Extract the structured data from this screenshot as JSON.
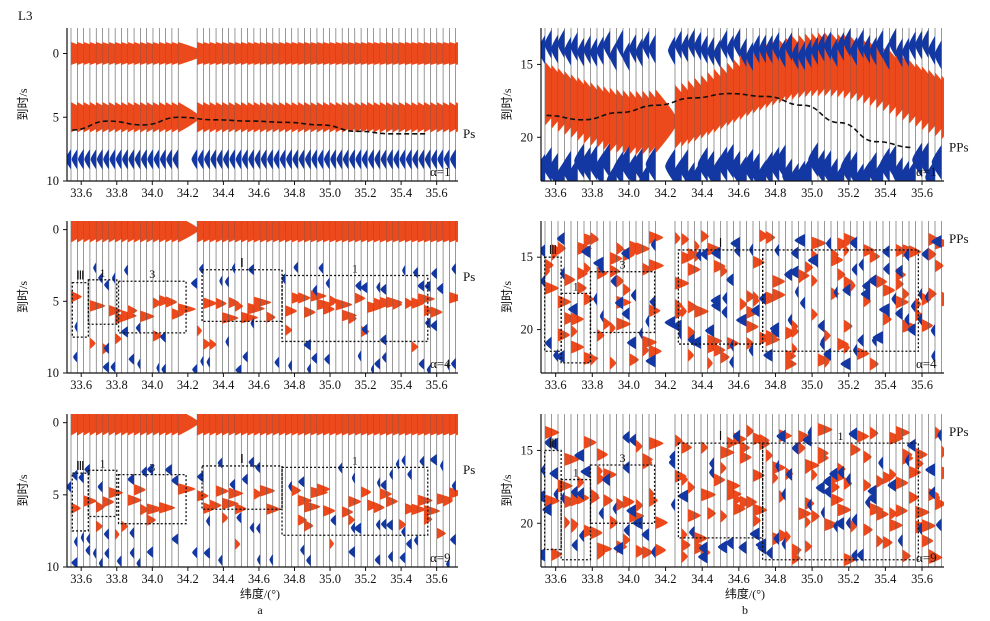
{
  "figure": {
    "line_label": "L3",
    "xlabel": "纬度/(°)",
    "ylabel": "到时/s",
    "subfig_labels": [
      "a",
      "b"
    ],
    "colors": {
      "positive": "#ec4a1c",
      "negative": "#1338a3",
      "trace": "#555555"
    }
  },
  "chart_data": [
    {
      "id": "a1",
      "type": "heatmap",
      "phase": "Ps",
      "alpha": "α=1",
      "xlim": [
        33.52,
        35.72
      ],
      "xticks": [
        "33.6",
        "33.8",
        "34.0",
        "34.2",
        "34.4",
        "34.6",
        "34.8",
        "35.0",
        "35.2",
        "35.4",
        "35.6"
      ],
      "ylim": [
        10,
        -2
      ],
      "yticks": [
        "0",
        "5",
        "10"
      ],
      "moveout": {
        "x": [
          33.55,
          33.75,
          33.95,
          34.15,
          34.35,
          34.55,
          34.75,
          34.95,
          35.15,
          35.35,
          35.55
        ],
        "y": [
          6.0,
          5.3,
          5.6,
          5.0,
          5.2,
          5.3,
          5.4,
          5.6,
          6.1,
          6.3,
          6.3
        ]
      },
      "boxes": []
    },
    {
      "id": "b1",
      "type": "heatmap",
      "phase": "PPs",
      "alpha": "α=1",
      "xlim": [
        33.52,
        35.72
      ],
      "xticks": [
        "33.6",
        "33.8",
        "34.0",
        "34.2",
        "34.4",
        "34.6",
        "34.8",
        "35.0",
        "35.2",
        "35.4",
        "35.6"
      ],
      "ylim": [
        23,
        12.5
      ],
      "yticks": [
        "15",
        "20"
      ],
      "moveout": {
        "x": [
          33.55,
          33.75,
          33.95,
          34.15,
          34.35,
          34.55,
          34.75,
          34.95,
          35.15,
          35.35,
          35.55
        ],
        "y": [
          18.5,
          18.8,
          18.3,
          17.8,
          17.3,
          17.0,
          17.2,
          17.8,
          19.0,
          20.3,
          20.7
        ]
      },
      "boxes": []
    },
    {
      "id": "a2",
      "type": "heatmap",
      "phase": "Ps",
      "alpha": "α=4",
      "xlim": [
        33.52,
        35.72
      ],
      "xticks": [
        "33.6",
        "33.8",
        "34.0",
        "34.2",
        "34.4",
        "34.6",
        "34.8",
        "35.0",
        "35.2",
        "35.4",
        "35.6"
      ],
      "ylim": [
        10,
        -0.6
      ],
      "yticks": [
        "0",
        "5",
        "10"
      ],
      "boxes": [
        {
          "label": "Ⅲ",
          "x0": 33.55,
          "x1": 33.64,
          "y0": 3.7,
          "y1": 7.5
        },
        {
          "label": "1",
          "x0": 33.64,
          "x1": 33.8,
          "y0": 3.5,
          "y1": 6.6
        },
        {
          "label": "3",
          "x0": 33.81,
          "x1": 34.19,
          "y0": 3.6,
          "y1": 7.2
        },
        {
          "label": "Ⅰ",
          "x0": 34.28,
          "x1": 34.73,
          "y0": 2.8,
          "y1": 6.4
        },
        {
          "label": "1",
          "x0": 34.73,
          "x1": 35.55,
          "y0": 3.2,
          "y1": 7.8
        }
      ]
    },
    {
      "id": "b2",
      "type": "heatmap",
      "phase": "PPs",
      "alpha": "α=4",
      "xlim": [
        33.52,
        35.72
      ],
      "xticks": [
        "33.6",
        "33.8",
        "34.0",
        "34.2",
        "34.4",
        "34.6",
        "34.8",
        "35.0",
        "35.2",
        "35.4",
        "35.6"
      ],
      "ylim": [
        23,
        12.5
      ],
      "yticks": [
        "15",
        "20"
      ],
      "boxes": [
        {
          "label": "Ⅲ",
          "x0": 33.54,
          "x1": 33.63,
          "y0": 15.0,
          "y1": 21.5
        },
        {
          "label": "1",
          "x0": 33.63,
          "x1": 33.79,
          "y0": 17.5,
          "y1": 22.3
        },
        {
          "label": "3",
          "x0": 33.79,
          "x1": 34.14,
          "y0": 16.0,
          "y1": 20.2
        },
        {
          "label": "Ⅰ",
          "x0": 34.27,
          "x1": 34.73,
          "y0": 14.5,
          "y1": 21.0
        },
        {
          "label": "",
          "x0": 34.73,
          "x1": 35.58,
          "y0": 14.5,
          "y1": 21.5
        }
      ]
    },
    {
      "id": "a3",
      "type": "heatmap",
      "phase": "Ps",
      "alpha": "α=9",
      "xlim": [
        33.52,
        35.72
      ],
      "xticks": [
        "33.6",
        "33.8",
        "34.0",
        "34.2",
        "34.4",
        "34.6",
        "34.8",
        "35.0",
        "35.2",
        "35.4",
        "35.6"
      ],
      "ylim": [
        10,
        -0.6
      ],
      "yticks": [
        "0",
        "5",
        "10"
      ],
      "boxes": [
        {
          "label": "Ⅲ",
          "x0": 33.55,
          "x1": 33.64,
          "y0": 3.5,
          "y1": 7.5
        },
        {
          "label": "1",
          "x0": 33.64,
          "x1": 33.8,
          "y0": 3.3,
          "y1": 6.5
        },
        {
          "label": "3",
          "x0": 33.81,
          "x1": 34.19,
          "y0": 3.6,
          "y1": 7.0
        },
        {
          "label": "Ⅰ",
          "x0": 34.28,
          "x1": 34.73,
          "y0": 3.0,
          "y1": 6.0
        },
        {
          "label": "1",
          "x0": 34.73,
          "x1": 35.55,
          "y0": 3.1,
          "y1": 7.8
        }
      ]
    },
    {
      "id": "b3",
      "type": "heatmap",
      "phase": "PPs",
      "alpha": "α=9",
      "xlim": [
        33.52,
        35.72
      ],
      "xticks": [
        "33.6",
        "33.8",
        "34.0",
        "34.2",
        "34.4",
        "34.6",
        "34.8",
        "35.0",
        "35.2",
        "35.4",
        "35.6"
      ],
      "ylim": [
        23,
        12.5
      ],
      "yticks": [
        "15",
        "20"
      ],
      "boxes": [
        {
          "label": "Ⅲ",
          "x0": 33.54,
          "x1": 33.63,
          "y0": 15.0,
          "y1": 21.8
        },
        {
          "label": "1",
          "x0": 33.63,
          "x1": 33.79,
          "y0": 17.0,
          "y1": 22.5
        },
        {
          "label": "3",
          "x0": 33.79,
          "x1": 34.14,
          "y0": 16.0,
          "y1": 20.0
        },
        {
          "label": "Ⅰ",
          "x0": 34.27,
          "x1": 34.73,
          "y0": 14.5,
          "y1": 21.0
        },
        {
          "label": "1",
          "x0": 34.73,
          "x1": 35.58,
          "y0": 14.5,
          "y1": 22.5
        }
      ]
    }
  ]
}
